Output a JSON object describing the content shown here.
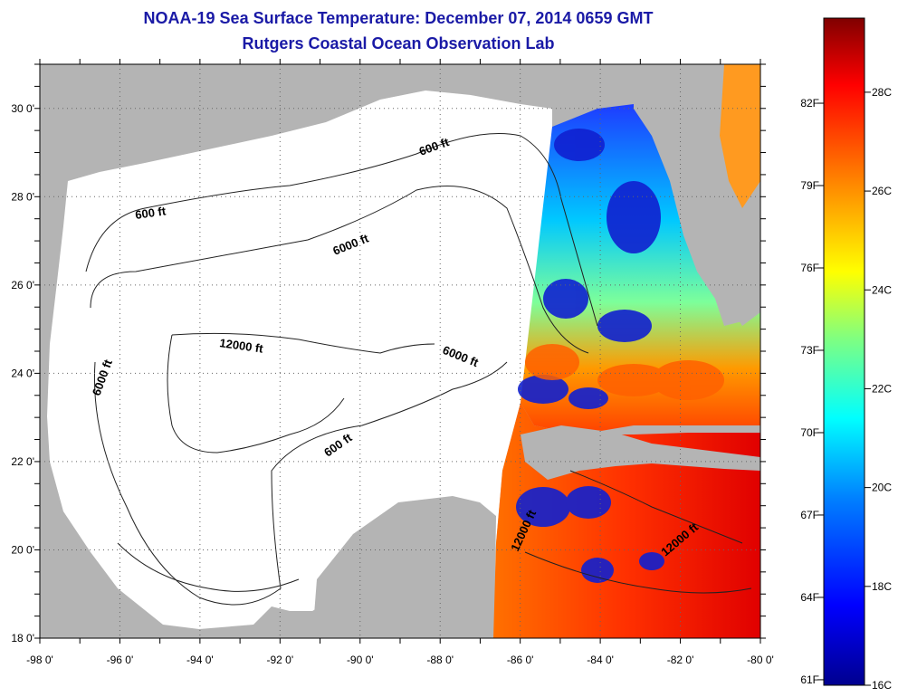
{
  "title": {
    "line1": "NOAA-19 Sea Surface Temperature:  December 07, 2014 0659 GMT",
    "line2": "Rutgers Coastal Ocean Observation Lab"
  },
  "map": {
    "lon_range": [
      -98,
      -80
    ],
    "lat_range": [
      18,
      31
    ],
    "lon_tick_labels": [
      "-98 0'",
      "-96 0'",
      "-94 0'",
      "-92 0'",
      "-90 0'",
      "-88 0'",
      "-86 0'",
      "-84 0'",
      "-82 0'",
      "-80 0'"
    ],
    "lat_tick_labels": [
      "18 0'",
      "20 0'",
      "22 0'",
      "24 0'",
      "26 0'",
      "28 0'",
      "30 0'"
    ],
    "contour_labels": [
      {
        "text": "600 ft"
      },
      {
        "text": "600 ft"
      },
      {
        "text": "6000 ft"
      },
      {
        "text": "6000 ft"
      },
      {
        "text": "12000 ft"
      },
      {
        "text": "6000 ft"
      },
      {
        "text": "600 ft"
      },
      {
        "text": "12000 ft"
      },
      {
        "text": "12000 ft"
      }
    ],
    "colors": {
      "land": "#b4b4b4",
      "no_data": "#ffffff",
      "grid": "#555555"
    }
  },
  "colorbar": {
    "min_label": "61F",
    "fahrenheit_labels": [
      "82F",
      "79F",
      "76F",
      "73F",
      "70F",
      "67F",
      "64F",
      "61F"
    ],
    "celsius_labels": [
      "28C",
      "26C",
      "24C",
      "22C",
      "20C",
      "18C",
      "16C"
    ],
    "range_c": [
      16,
      29.5
    ],
    "colors": [
      "#00008f",
      "#0000ff",
      "#0080ff",
      "#00ffff",
      "#80ff80",
      "#ffff00",
      "#ff8000",
      "#ff0000",
      "#800000"
    ]
  }
}
